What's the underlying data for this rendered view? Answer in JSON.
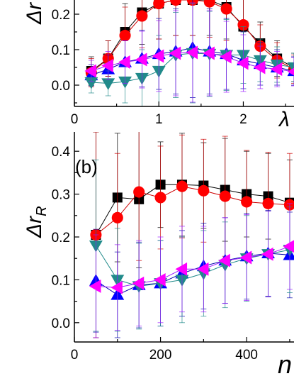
{
  "chart_data": [
    {
      "type": "scatter",
      "panel_label": "",
      "ylabel": "Δr",
      "xlabel": "λ",
      "xlim": [
        0,
        2.6
      ],
      "ylim": [
        -0.06,
        0.24
      ],
      "xticks": [
        0,
        1,
        2
      ],
      "xtick_labels": [
        "0",
        "1",
        "2"
      ],
      "yticks": [
        0.0,
        0.1,
        0.2
      ],
      "ytick_labels": [
        "0.0",
        "0.1",
        "0.2"
      ],
      "series": [
        {
          "marker": "square",
          "color": "#000000",
          "line": "#000000",
          "x": [
            0.2,
            0.4,
            0.6,
            0.8,
            1.0,
            1.2,
            1.4,
            1.6,
            1.8,
            2.0,
            2.2,
            2.4,
            2.6
          ],
          "y": [
            0.04,
            0.075,
            0.15,
            0.205,
            0.23,
            0.24,
            0.24,
            0.24,
            0.22,
            0.165,
            0.118,
            0.075,
            0.05
          ],
          "err": [
            0.04,
            0.05,
            0.08,
            0.09,
            0.1,
            0.1,
            0.1,
            0.1,
            0.09,
            0.08,
            0.06,
            0.05,
            0.04
          ]
        },
        {
          "marker": "circle",
          "color": "#ff0000",
          "line": "#cc0000",
          "x": [
            0.2,
            0.4,
            0.6,
            0.8,
            1.0,
            1.2,
            1.4,
            1.6,
            1.8,
            2.0,
            2.2,
            2.4,
            2.6
          ],
          "y": [
            0.035,
            0.075,
            0.14,
            0.195,
            0.23,
            0.24,
            0.24,
            0.235,
            0.215,
            0.17,
            0.11,
            0.07,
            0.045
          ],
          "err": [
            0.04,
            0.05,
            0.08,
            0.09,
            0.1,
            0.1,
            0.1,
            0.1,
            0.09,
            0.08,
            0.06,
            0.05,
            0.04
          ]
        },
        {
          "marker": "triangle-up",
          "color": "#0000ff",
          "line": "#0000aa",
          "x": [
            0.2,
            0.4,
            0.6,
            0.8,
            1.0,
            1.2,
            1.4,
            1.6,
            1.8,
            2.0,
            2.2,
            2.4,
            2.6
          ],
          "y": [
            0.028,
            0.045,
            0.065,
            0.075,
            0.088,
            0.095,
            0.105,
            0.095,
            0.088,
            0.07,
            0.06,
            0.05,
            0.04
          ],
          "err": [
            0.03,
            0.04,
            0.06,
            0.08,
            0.1,
            0.12,
            0.14,
            0.12,
            0.1,
            0.08,
            0.06,
            0.05,
            0.04
          ]
        },
        {
          "marker": "triangle-down",
          "color": "#208a8a",
          "line": "#208a8a",
          "x": [
            0.2,
            0.4,
            0.6,
            0.8,
            1.0,
            1.2,
            1.4,
            1.6,
            1.8,
            2.0,
            2.2,
            2.4,
            2.6
          ],
          "y": [
            0.008,
            0.005,
            0.01,
            0.02,
            0.04,
            0.085,
            0.09,
            0.088,
            0.085,
            0.085,
            0.07,
            0.058,
            0.05
          ],
          "err": [
            0.03,
            0.035,
            0.06,
            0.08,
            0.1,
            0.12,
            0.14,
            0.12,
            0.1,
            0.08,
            0.06,
            0.05,
            0.04
          ]
        },
        {
          "marker": "triangle-left",
          "color": "#ff00ff",
          "line": "#9a1aff",
          "x": [
            0.2,
            0.4,
            0.6,
            0.8,
            1.0,
            1.2,
            1.4,
            1.6,
            1.8,
            2.0,
            2.2,
            2.4,
            2.6
          ],
          "y": [
            0.04,
            0.055,
            0.065,
            0.072,
            0.082,
            0.09,
            0.092,
            0.09,
            0.08,
            0.062,
            0.05,
            0.045,
            0.038
          ],
          "err": [
            0.03,
            0.04,
            0.06,
            0.08,
            0.1,
            0.12,
            0.14,
            0.12,
            0.1,
            0.08,
            0.06,
            0.05,
            0.04
          ]
        }
      ]
    },
    {
      "type": "scatter",
      "panel_label": "(b)",
      "ylabel": "Δr",
      "ylabel_sub": "R",
      "xlabel": "n",
      "xlim": [
        0,
        510
      ],
      "ylim": [
        -0.045,
        0.445
      ],
      "xticks": [
        0,
        200,
        400
      ],
      "xtick_labels": [
        "0",
        "200",
        "400"
      ],
      "yticks": [
        0.0,
        0.1,
        0.2,
        0.3,
        0.4
      ],
      "ytick_labels": [
        "0.0",
        "0.1",
        "0.2",
        "0.3",
        "0.4"
      ],
      "series": [
        {
          "marker": "square",
          "color": "#000000",
          "line": "#000000",
          "x": [
            50,
            100,
            150,
            200,
            250,
            300,
            350,
            400,
            450,
            500
          ],
          "y": [
            0.205,
            0.292,
            0.288,
            0.322,
            0.322,
            0.32,
            0.31,
            0.3,
            0.295,
            0.28
          ],
          "err": [
            0.24,
            0.15,
            0.16,
            0.1,
            0.12,
            0.1,
            0.12,
            0.1,
            0.1,
            0.1
          ]
        },
        {
          "marker": "circle",
          "color": "#ff0000",
          "line": "#cc0000",
          "x": [
            50,
            100,
            150,
            200,
            250,
            300,
            350,
            400,
            450,
            500
          ],
          "y": [
            0.205,
            0.245,
            0.305,
            0.292,
            0.318,
            0.308,
            0.295,
            0.282,
            0.278,
            0.275
          ],
          "err": [
            0.24,
            0.15,
            0.16,
            0.12,
            0.12,
            0.12,
            0.14,
            0.12,
            0.12,
            0.12
          ]
        },
        {
          "marker": "triangle-up",
          "color": "#0000ff",
          "line": "#0000aa",
          "x": [
            50,
            100,
            150,
            200,
            250,
            300,
            350,
            400,
            450,
            500
          ],
          "y": [
            0.098,
            0.065,
            0.088,
            0.092,
            0.115,
            0.132,
            0.145,
            0.155,
            0.162,
            0.158
          ],
          "err": [
            0.12,
            0.1,
            0.1,
            0.1,
            0.1,
            0.1,
            0.1,
            0.1,
            0.1,
            0.1
          ]
        },
        {
          "marker": "triangle-down",
          "color": "#208a8a",
          "line": "#208a8a",
          "x": [
            50,
            100,
            150,
            200,
            250,
            300,
            350,
            400,
            450,
            500
          ],
          "y": [
            0.18,
            0.1,
            0.085,
            0.092,
            0.1,
            0.115,
            0.135,
            0.15,
            0.16,
            0.17
          ],
          "err": [
            0.2,
            0.12,
            0.1,
            0.1,
            0.1,
            0.1,
            0.1,
            0.1,
            0.1,
            0.1
          ]
        },
        {
          "marker": "triangle-left",
          "color": "#ff00ff",
          "line": "#9a1aff",
          "x": [
            50,
            100,
            150,
            200,
            250,
            300,
            350,
            400,
            450,
            500
          ],
          "y": [
            0.085,
            0.082,
            0.092,
            0.1,
            0.125,
            0.125,
            0.145,
            0.152,
            0.16,
            0.178
          ],
          "err": [
            0.12,
            0.1,
            0.1,
            0.1,
            0.1,
            0.1,
            0.1,
            0.1,
            0.1,
            0.1
          ]
        }
      ]
    }
  ]
}
